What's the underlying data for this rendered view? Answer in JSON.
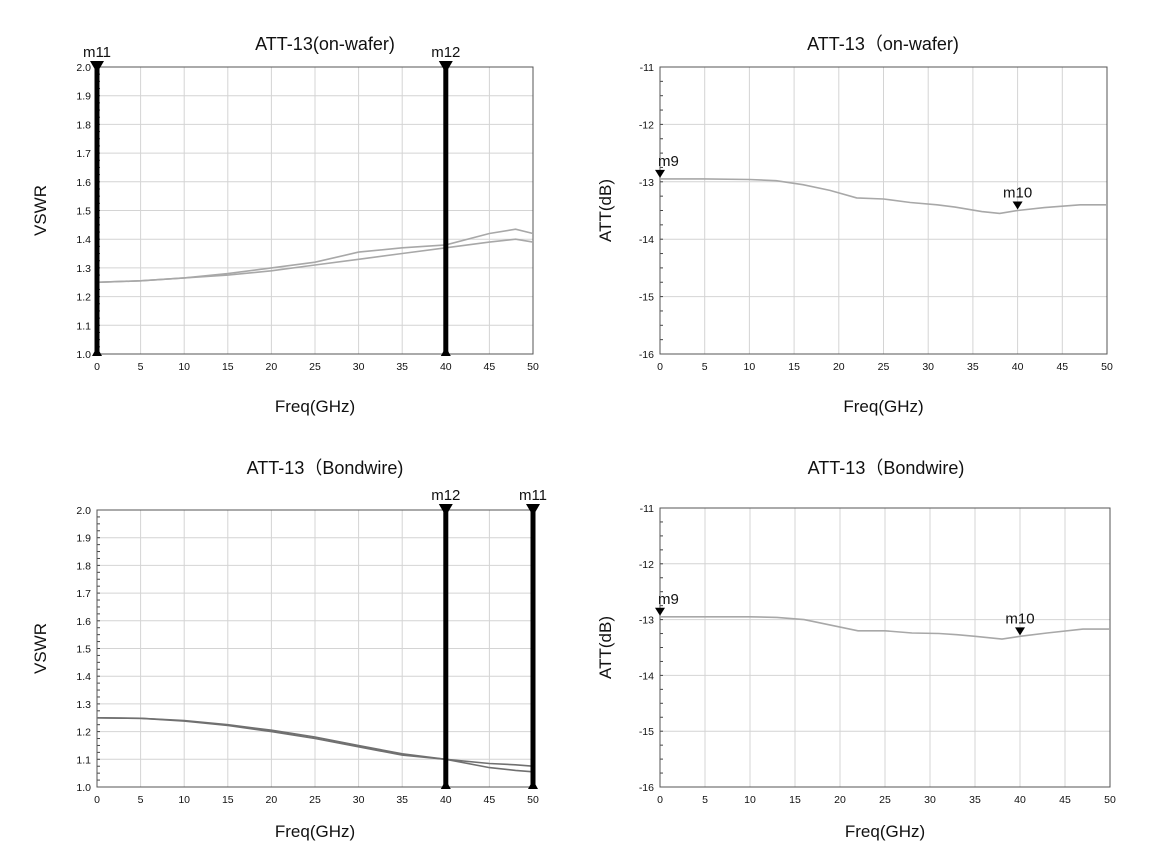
{
  "chart_data": [
    {
      "type": "line",
      "title": "ATT-13(on-wafer)",
      "xlabel": "Freq(GHz)",
      "ylabel": "VSWR",
      "xlim": [
        0,
        50
      ],
      "ylim": [
        1.0,
        2.0
      ],
      "x_ticks": [
        0,
        5,
        10,
        15,
        20,
        25,
        30,
        35,
        40,
        45,
        50
      ],
      "x_tick_labels": [
        "0",
        "5",
        "10",
        "15",
        "20",
        "25",
        "30",
        "35",
        "40",
        "45",
        "50"
      ],
      "y_ticks": [
        1.0,
        1.1,
        1.2,
        1.3,
        1.4,
        1.5,
        1.6,
        1.7,
        1.8,
        1.9,
        2.0
      ],
      "y_tick_labels": [
        "1.0",
        "1.1",
        "1.2",
        "1.3",
        "1.4",
        "1.5",
        "1.6",
        "1.7",
        "1.8",
        "1.9",
        "2.0"
      ],
      "grid": true,
      "line_color": "#a8a8a8",
      "series": [
        {
          "x": [
            0,
            5,
            10,
            15,
            20,
            25,
            30,
            35,
            40,
            45,
            48,
            50
          ],
          "values": [
            1.25,
            1.255,
            1.265,
            1.28,
            1.3,
            1.32,
            1.355,
            1.37,
            1.38,
            1.42,
            1.435,
            1.42
          ]
        },
        {
          "x": [
            0,
            5,
            10,
            15,
            20,
            25,
            30,
            35,
            40,
            45,
            48,
            50
          ],
          "values": [
            1.25,
            1.255,
            1.265,
            1.275,
            1.29,
            1.31,
            1.33,
            1.35,
            1.37,
            1.39,
            1.4,
            1.39
          ]
        }
      ],
      "markers": [
        {
          "label": "m11",
          "x": 0,
          "style": "line"
        },
        {
          "label": "m12",
          "x": 40,
          "style": "line"
        }
      ]
    },
    {
      "type": "line",
      "title": "ATT-13（on-wafer)",
      "xlabel": "Freq(GHz)",
      "ylabel": "ATT(dB)",
      "xlim": [
        0,
        50
      ],
      "ylim": [
        -16,
        -11
      ],
      "x_ticks": [
        0,
        5,
        10,
        15,
        20,
        25,
        30,
        35,
        40,
        45,
        50
      ],
      "x_tick_labels": [
        "0",
        "5",
        "10",
        "15",
        "20",
        "25",
        "30",
        "35",
        "40",
        "45",
        "50"
      ],
      "y_ticks": [
        -16,
        -15,
        -14,
        -13,
        -12,
        -11
      ],
      "y_tick_labels": [
        "-16",
        "-15",
        "-14",
        "-13",
        "-12",
        "-11"
      ],
      "grid": true,
      "line_color": "#a8a8a8",
      "series": [
        {
          "x": [
            0,
            5,
            10,
            13,
            16,
            19,
            22,
            25,
            28,
            31,
            33,
            36,
            38,
            40,
            43,
            47,
            50
          ],
          "values": [
            -12.95,
            -12.95,
            -12.96,
            -12.98,
            -13.05,
            -13.15,
            -13.28,
            -13.3,
            -13.36,
            -13.4,
            -13.44,
            -13.52,
            -13.55,
            -13.5,
            -13.45,
            -13.4,
            -13.4
          ]
        }
      ],
      "markers": [
        {
          "label": "m9",
          "x": 0,
          "y": -12.95,
          "style": "point"
        },
        {
          "label": "m10",
          "x": 40,
          "y": -13.5,
          "style": "point"
        }
      ]
    },
    {
      "type": "line",
      "title": "ATT-13（Bondwire)",
      "xlabel": "Freq(GHz)",
      "ylabel": "VSWR",
      "xlim": [
        0,
        50
      ],
      "ylim": [
        1.0,
        2.0
      ],
      "x_ticks": [
        0,
        5,
        10,
        15,
        20,
        25,
        30,
        35,
        40,
        45,
        50
      ],
      "x_tick_labels": [
        "0",
        "5",
        "10",
        "15",
        "20",
        "25",
        "30",
        "35",
        "40",
        "45",
        "50"
      ],
      "y_ticks": [
        1.0,
        1.1,
        1.2,
        1.3,
        1.4,
        1.5,
        1.6,
        1.7,
        1.8,
        1.9,
        2.0
      ],
      "y_tick_labels": [
        "1.0",
        "1.1",
        "1.2",
        "1.3",
        "1.4",
        "1.5",
        "1.6",
        "1.7",
        "1.8",
        "1.9",
        "2.0"
      ],
      "grid": true,
      "line_color": "#707070",
      "series": [
        {
          "x": [
            0,
            5,
            10,
            15,
            20,
            25,
            30,
            35,
            40,
            45,
            48,
            50
          ],
          "values": [
            1.25,
            1.248,
            1.24,
            1.225,
            1.205,
            1.18,
            1.15,
            1.12,
            1.1,
            1.085,
            1.08,
            1.075
          ]
        },
        {
          "x": [
            0,
            5,
            10,
            15,
            20,
            25,
            30,
            35,
            40,
            45,
            48,
            50
          ],
          "values": [
            1.25,
            1.248,
            1.238,
            1.222,
            1.2,
            1.175,
            1.145,
            1.115,
            1.1,
            1.07,
            1.06,
            1.055
          ]
        }
      ],
      "markers": [
        {
          "label": "m12",
          "x": 40,
          "style": "line"
        },
        {
          "label": "m11",
          "x": 50,
          "style": "line"
        }
      ]
    },
    {
      "type": "line",
      "title": "ATT-13（Bondwire)",
      "xlabel": "Freq(GHz)",
      "ylabel": "ATT(dB)",
      "xlim": [
        0,
        50
      ],
      "ylim": [
        -16,
        -11
      ],
      "x_ticks": [
        0,
        5,
        10,
        15,
        20,
        25,
        30,
        35,
        40,
        45,
        50
      ],
      "x_tick_labels": [
        "0",
        "5",
        "10",
        "15",
        "20",
        "25",
        "30",
        "35",
        "40",
        "45",
        "50"
      ],
      "y_ticks": [
        -16,
        -15,
        -14,
        -13,
        -12,
        -11
      ],
      "y_tick_labels": [
        "-16",
        "-15",
        "-14",
        "-13",
        "-12",
        "-11"
      ],
      "grid": true,
      "line_color": "#a8a8a8",
      "series": [
        {
          "x": [
            0,
            5,
            10,
            13,
            16,
            19,
            22,
            25,
            28,
            31,
            33,
            35,
            38,
            40,
            43,
            47,
            50
          ],
          "values": [
            -12.95,
            -12.95,
            -12.95,
            -12.96,
            -13.0,
            -13.1,
            -13.2,
            -13.2,
            -13.24,
            -13.25,
            -13.27,
            -13.3,
            -13.35,
            -13.3,
            -13.24,
            -13.17,
            -13.17
          ]
        }
      ],
      "markers": [
        {
          "label": "m9",
          "x": 0,
          "y": -12.95,
          "style": "point"
        },
        {
          "label": "m10",
          "x": 40,
          "y": -13.3,
          "style": "point"
        }
      ]
    }
  ]
}
